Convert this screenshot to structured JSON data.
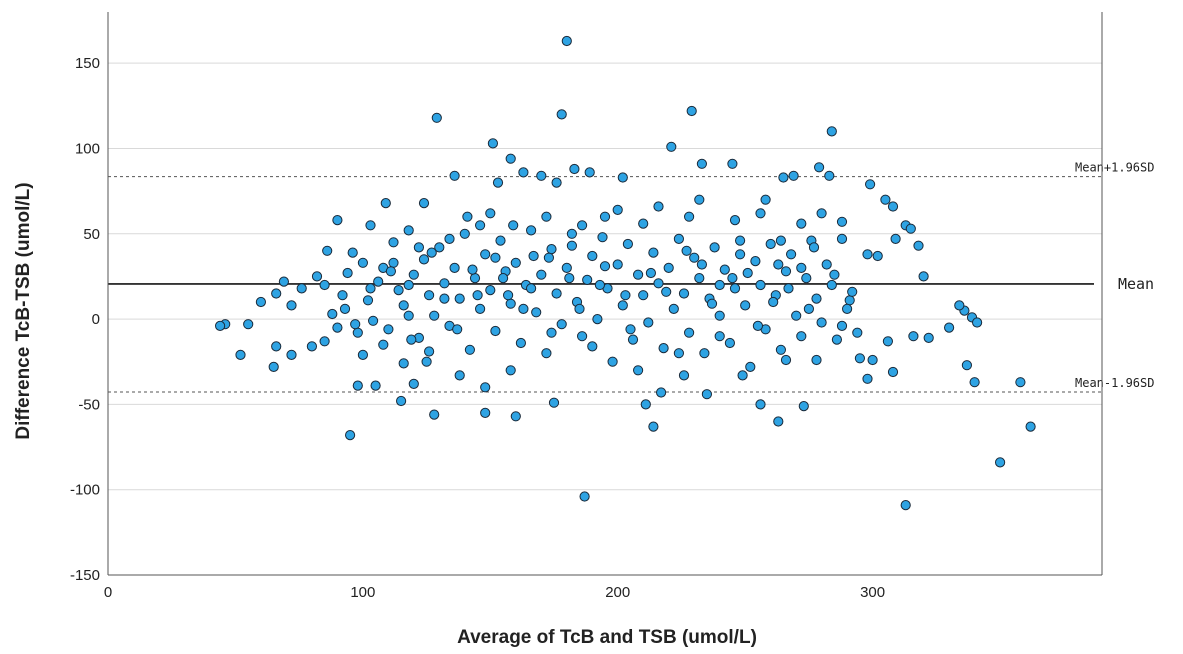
{
  "chart_data": {
    "type": "scatter",
    "title": "",
    "xlabel": "Average of TcB and TSB (umol/L)",
    "ylabel": "Difference TcB-TSB (umol/L)",
    "xlim": [
      0,
      390
    ],
    "ylim": [
      -150,
      180
    ],
    "x_ticks": [
      0,
      100,
      200,
      300
    ],
    "y_ticks": [
      -150,
      -100,
      -50,
      0,
      50,
      100,
      150
    ],
    "grid": "horizontal",
    "reference_lines": [
      {
        "name": "Mean",
        "y": 20.6,
        "style": "solid"
      },
      {
        "name": "Mean+1.96SD",
        "y": 83.5,
        "style": "dashed"
      },
      {
        "name": "Mean-1.96SD",
        "y": -42.7,
        "style": "dashed"
      }
    ],
    "colors": {
      "point_fill": "#2ea3e3",
      "point_edge": "#1a2a3a",
      "mean_line": "#333333"
    },
    "series": [
      {
        "points": [
          [
            180,
            163
          ],
          [
            229,
            122
          ],
          [
            129,
            118
          ],
          [
            178,
            120
          ],
          [
            284,
            110
          ],
          [
            151,
            103
          ],
          [
            221,
            101
          ],
          [
            158,
            94
          ],
          [
            183,
            88
          ],
          [
            233,
            91
          ],
          [
            245,
            91
          ],
          [
            279,
            89
          ],
          [
            163,
            86
          ],
          [
            170,
            84
          ],
          [
            189,
            86
          ],
          [
            176,
            80
          ],
          [
            136,
            84
          ],
          [
            153,
            80
          ],
          [
            202,
            83
          ],
          [
            265,
            83
          ],
          [
            269,
            84
          ],
          [
            283,
            84
          ],
          [
            299,
            79
          ],
          [
            305,
            70
          ],
          [
            308,
            66
          ],
          [
            313,
            55
          ],
          [
            315,
            53
          ],
          [
            60,
            10
          ],
          [
            55,
            -3
          ],
          [
            52,
            -21
          ],
          [
            46,
            -3
          ],
          [
            44,
            -4
          ],
          [
            66,
            -16
          ],
          [
            65,
            -28
          ],
          [
            72,
            -21
          ],
          [
            66,
            15
          ],
          [
            69,
            22
          ],
          [
            72,
            8
          ],
          [
            76,
            18
          ],
          [
            95,
            -68
          ],
          [
            98,
            -39
          ],
          [
            105,
            -39
          ],
          [
            115,
            -48
          ],
          [
            128,
            -56
          ],
          [
            148,
            -55
          ],
          [
            160,
            -57
          ],
          [
            187,
            -104
          ],
          [
            175,
            -49
          ],
          [
            148,
            -40
          ],
          [
            211,
            -50
          ],
          [
            214,
            -63
          ],
          [
            217,
            -43
          ],
          [
            235,
            -44
          ],
          [
            263,
            -60
          ],
          [
            256,
            -50
          ],
          [
            273,
            -51
          ],
          [
            308,
            -31
          ],
          [
            313,
            -109
          ],
          [
            350,
            -84
          ],
          [
            362,
            -63
          ],
          [
            358,
            -37
          ],
          [
            340,
            -37
          ],
          [
            337,
            -27
          ],
          [
            330,
            -5
          ],
          [
            336,
            5
          ],
          [
            334,
            8
          ],
          [
            339,
            1
          ],
          [
            341,
            -2
          ],
          [
            320,
            25
          ],
          [
            318,
            43
          ],
          [
            322,
            -11
          ],
          [
            316,
            -10
          ],
          [
            306,
            -13
          ],
          [
            300,
            -24
          ],
          [
            298,
            -35
          ],
          [
            298,
            38
          ],
          [
            302,
            37
          ],
          [
            309,
            47
          ],
          [
            295,
            -23
          ],
          [
            288,
            -4
          ],
          [
            291,
            11
          ],
          [
            288,
            57
          ],
          [
            278,
            -24
          ],
          [
            266,
            -24
          ],
          [
            249,
            -33
          ],
          [
            240,
            -10
          ],
          [
            226,
            -33
          ],
          [
            120,
            -38
          ],
          [
            138,
            -33
          ],
          [
            125,
            -25
          ],
          [
            116,
            -26
          ],
          [
            108,
            -15
          ],
          [
            100,
            -21
          ],
          [
            85,
            -13
          ],
          [
            80,
            -16
          ],
          [
            90,
            58
          ],
          [
            103,
            55
          ],
          [
            109,
            68
          ],
          [
            124,
            68
          ],
          [
            141,
            60
          ],
          [
            159,
            55
          ],
          [
            172,
            60
          ],
          [
            186,
            55
          ],
          [
            195,
            60
          ],
          [
            210,
            56
          ],
          [
            228,
            60
          ],
          [
            246,
            58
          ],
          [
            258,
            70
          ],
          [
            272,
            56
          ],
          [
            288,
            47
          ],
          [
            82,
            25
          ],
          [
            85,
            20
          ],
          [
            88,
            3
          ],
          [
            90,
            -5
          ],
          [
            92,
            14
          ],
          [
            94,
            27
          ],
          [
            96,
            39
          ],
          [
            98,
            -8
          ],
          [
            100,
            33
          ],
          [
            102,
            11
          ],
          [
            104,
            -1
          ],
          [
            106,
            22
          ],
          [
            108,
            30
          ],
          [
            110,
            -6
          ],
          [
            112,
            45
          ],
          [
            114,
            17
          ],
          [
            116,
            8
          ],
          [
            118,
            52
          ],
          [
            120,
            26
          ],
          [
            122,
            -11
          ],
          [
            124,
            35
          ],
          [
            126,
            14
          ],
          [
            128,
            2
          ],
          [
            130,
            42
          ],
          [
            132,
            21
          ],
          [
            134,
            -4
          ],
          [
            136,
            30
          ],
          [
            138,
            12
          ],
          [
            140,
            50
          ],
          [
            142,
            -18
          ],
          [
            144,
            24
          ],
          [
            146,
            6
          ],
          [
            148,
            38
          ],
          [
            150,
            17
          ],
          [
            152,
            -7
          ],
          [
            154,
            46
          ],
          [
            156,
            28
          ],
          [
            158,
            9
          ],
          [
            160,
            33
          ],
          [
            162,
            -14
          ],
          [
            164,
            20
          ],
          [
            166,
            52
          ],
          [
            168,
            4
          ],
          [
            170,
            26
          ],
          [
            172,
            -20
          ],
          [
            174,
            41
          ],
          [
            176,
            15
          ],
          [
            178,
            -3
          ],
          [
            180,
            30
          ],
          [
            182,
            50
          ],
          [
            184,
            10
          ],
          [
            186,
            -10
          ],
          [
            188,
            23
          ],
          [
            190,
            37
          ],
          [
            192,
            0
          ],
          [
            194,
            48
          ],
          [
            196,
            18
          ],
          [
            198,
            -25
          ],
          [
            200,
            32
          ],
          [
            202,
            8
          ],
          [
            204,
            44
          ],
          [
            206,
            -12
          ],
          [
            208,
            26
          ],
          [
            210,
            14
          ],
          [
            212,
            -2
          ],
          [
            214,
            39
          ],
          [
            216,
            21
          ],
          [
            218,
            -17
          ],
          [
            220,
            30
          ],
          [
            222,
            6
          ],
          [
            224,
            47
          ],
          [
            226,
            15
          ],
          [
            228,
            -8
          ],
          [
            230,
            36
          ],
          [
            232,
            24
          ],
          [
            234,
            -20
          ],
          [
            236,
            12
          ],
          [
            238,
            42
          ],
          [
            240,
            2
          ],
          [
            242,
            29
          ],
          [
            244,
            -14
          ],
          [
            246,
            18
          ],
          [
            248,
            46
          ],
          [
            250,
            8
          ],
          [
            252,
            -28
          ],
          [
            254,
            34
          ],
          [
            256,
            20
          ],
          [
            258,
            -6
          ],
          [
            260,
            44
          ],
          [
            262,
            14
          ],
          [
            264,
            -18
          ],
          [
            266,
            28
          ],
          [
            268,
            38
          ],
          [
            270,
            2
          ],
          [
            272,
            -10
          ],
          [
            274,
            24
          ],
          [
            276,
            46
          ],
          [
            278,
            12
          ],
          [
            280,
            -2
          ],
          [
            282,
            32
          ],
          [
            284,
            20
          ],
          [
            286,
            -12
          ],
          [
            290,
            6
          ],
          [
            292,
            16
          ],
          [
            294,
            -8
          ],
          [
            86,
            40
          ],
          [
            112,
            33
          ],
          [
            118,
            2
          ],
          [
            126,
            -19
          ],
          [
            134,
            47
          ],
          [
            146,
            55
          ],
          [
            152,
            36
          ],
          [
            158,
            -30
          ],
          [
            166,
            18
          ],
          [
            174,
            -8
          ],
          [
            182,
            43
          ],
          [
            190,
            -16
          ],
          [
            200,
            64
          ],
          [
            208,
            -30
          ],
          [
            216,
            66
          ],
          [
            224,
            -20
          ],
          [
            232,
            70
          ],
          [
            240,
            20
          ],
          [
            248,
            38
          ],
          [
            256,
            62
          ],
          [
            264,
            46
          ],
          [
            272,
            30
          ],
          [
            280,
            62
          ],
          [
            150,
            62
          ],
          [
            118,
            20
          ],
          [
            122,
            42
          ],
          [
            132,
            12
          ],
          [
            143,
            29
          ],
          [
            157,
            14
          ],
          [
            167,
            37
          ],
          [
            181,
            24
          ],
          [
            195,
            31
          ],
          [
            203,
            14
          ],
          [
            213,
            27
          ],
          [
            227,
            40
          ],
          [
            237,
            9
          ],
          [
            251,
            27
          ],
          [
            261,
            10
          ],
          [
            267,
            18
          ],
          [
            277,
            42
          ],
          [
            93,
            6
          ],
          [
            97,
            -3
          ],
          [
            103,
            18
          ],
          [
            111,
            28
          ],
          [
            119,
            -12
          ],
          [
            127,
            39
          ],
          [
            137,
            -6
          ],
          [
            145,
            14
          ],
          [
            155,
            24
          ],
          [
            163,
            6
          ],
          [
            173,
            36
          ],
          [
            185,
            6
          ],
          [
            193,
            20
          ],
          [
            205,
            -6
          ],
          [
            219,
            16
          ],
          [
            233,
            32
          ],
          [
            245,
            24
          ],
          [
            255,
            -4
          ],
          [
            263,
            32
          ],
          [
            275,
            6
          ],
          [
            285,
            26
          ]
        ]
      }
    ]
  }
}
